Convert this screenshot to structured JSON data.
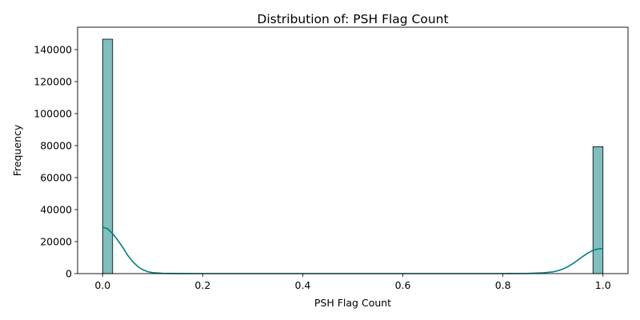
{
  "chart_data": {
    "type": "bar",
    "title": "Distribution of: PSH Flag Count",
    "xlabel": "PSH Flag Count",
    "ylabel": "Frequency",
    "xlim": [
      -0.05,
      1.05
    ],
    "ylim": [
      0,
      154000
    ],
    "xticks": [
      0.0,
      0.2,
      0.4,
      0.6,
      0.8,
      1.0
    ],
    "xtick_labels": [
      "0.0",
      "0.2",
      "0.4",
      "0.6",
      "0.8",
      "1.0"
    ],
    "yticks": [
      0,
      20000,
      40000,
      60000,
      80000,
      100000,
      120000,
      140000
    ],
    "ytick_labels": [
      "0",
      "20000",
      "40000",
      "60000",
      "80000",
      "100000",
      "120000",
      "140000"
    ],
    "bins": [
      {
        "x0": 0.0,
        "x1": 0.02,
        "count": 146500
      },
      {
        "x0": 0.98,
        "x1": 1.0,
        "count": 79300
      }
    ],
    "kde": {
      "x": [
        0.0,
        0.01,
        0.02,
        0.03,
        0.04,
        0.05,
        0.06,
        0.07,
        0.08,
        0.09,
        0.1,
        0.12,
        0.15,
        0.2,
        0.5,
        0.8,
        0.85,
        0.88,
        0.9,
        0.91,
        0.92,
        0.93,
        0.94,
        0.95,
        0.96,
        0.97,
        0.98,
        0.99,
        1.0
      ],
      "y": [
        29000,
        28000,
        25000,
        21000,
        16500,
        11500,
        7500,
        4500,
        2500,
        1200,
        600,
        150,
        40,
        0,
        0,
        0,
        100,
        500,
        1100,
        1800,
        2900,
        4400,
        6300,
        8500,
        10800,
        12900,
        14500,
        15400,
        15700
      ]
    },
    "colors": {
      "bar_fill": "#80bfbf",
      "bar_edge": "#000000",
      "kde_line": "#008080"
    },
    "grid": false,
    "legend": "none"
  }
}
